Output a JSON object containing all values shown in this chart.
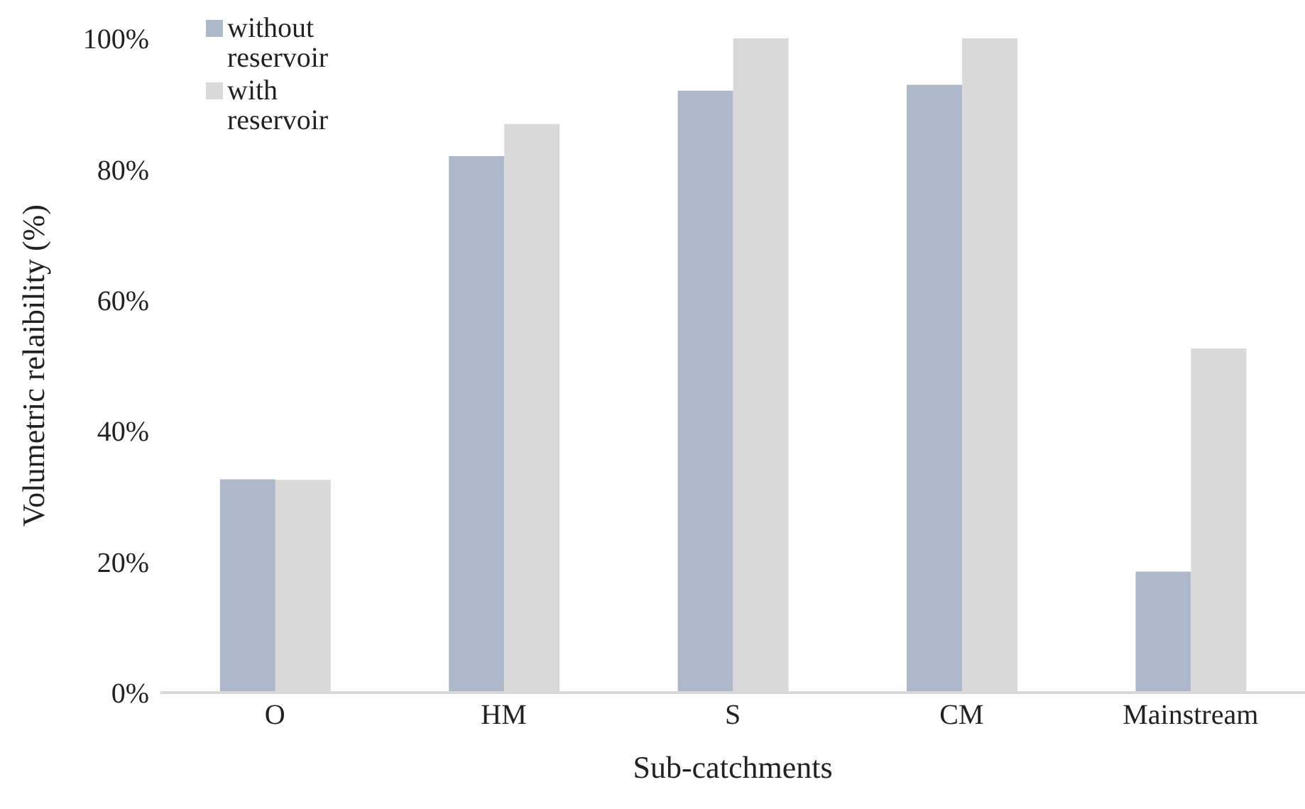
{
  "chart_data": {
    "type": "bar",
    "xlabel": "Sub-catchments",
    "ylabel": "Volumetric relaibility (%)",
    "categories": [
      "O",
      "HM",
      "S",
      "CM",
      "Mainstream"
    ],
    "series": [
      {
        "name": "without reservoir",
        "color": "#adb9ca",
        "values": [
          32.6,
          82,
          92,
          92.9,
          18.5
        ]
      },
      {
        "name": "with reservoir",
        "color": "#d9d9d9",
        "values": [
          32.5,
          86.9,
          100,
          100,
          52.6
        ]
      }
    ],
    "ylim": [
      0,
      100
    ],
    "yticks": [
      {
        "value": 0,
        "label": "0%"
      },
      {
        "value": 20,
        "label": "20%"
      },
      {
        "value": 40,
        "label": "40%"
      },
      {
        "value": 60,
        "label": "60%"
      },
      {
        "value": 80,
        "label": "80%"
      },
      {
        "value": 100,
        "label": "100%"
      }
    ],
    "grid": false,
    "legend": "top left"
  }
}
